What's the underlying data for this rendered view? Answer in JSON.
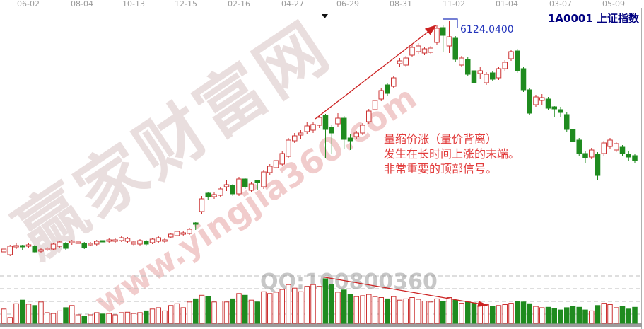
{
  "header": {
    "title": "1A0001 上证指数",
    "dates": [
      "06-02",
      "08-04",
      "10-13",
      "12-15",
      "02-16",
      "04-27",
      "06-29",
      "08-31",
      "11-02",
      "01-04",
      "03-07",
      "05-09"
    ]
  },
  "annotations": {
    "peak_label": "6124.0400",
    "note_lines": [
      "量缩价涨（量价背离）",
      "发生在长时间上涨的末端。",
      "非常重要的顶部信号。"
    ]
  },
  "watermarks": {
    "site_name": "赢家财富网",
    "url": "www.yingjia360.com",
    "qq": "QQ:100800360"
  },
  "colors": {
    "up": "#cc3333",
    "down": "#1f8b1f",
    "note_red": "#e23b3b",
    "peak_blue": "#2233bb",
    "title_navy": "#000080",
    "axis_text": "#9a9a9a",
    "grid": "#bdbdbd",
    "baseline": "#9c9c9c",
    "arrow": "#cc2020"
  },
  "chart_data": {
    "type": "candlestick",
    "symbol": "1A0001",
    "symbol_name": "上证指数",
    "interval": "weekly",
    "peak_price": 6124.04,
    "x_axis_dates": [
      "06-02",
      "08-04",
      "10-13",
      "12-15",
      "02-16",
      "04-27",
      "06-29",
      "08-31",
      "11-02",
      "01-04",
      "03-07",
      "05-09"
    ],
    "price_axis_estimated_range": [
      1400,
      6370
    ],
    "grid": "dashed horizontal lines in volume pane only",
    "legend_position": "none",
    "candles_ohlc_note": "open,high,low,close (estimated index points; red hollow = up week, green solid = down week)",
    "candles": [
      [
        1723,
        1818,
        1683,
        1777
      ],
      [
        1669,
        1858,
        1642,
        1831
      ],
      [
        1818,
        1885,
        1777,
        1845
      ],
      [
        1845,
        1858,
        1750,
        1818
      ],
      [
        1831,
        1899,
        1791,
        1858
      ],
      [
        1831,
        1858,
        1696,
        1723
      ],
      [
        1737,
        1791,
        1710,
        1764
      ],
      [
        1764,
        1818,
        1737,
        1791
      ],
      [
        1777,
        1899,
        1750,
        1872
      ],
      [
        1831,
        1939,
        1791,
        1912
      ],
      [
        1885,
        1912,
        1764,
        1791
      ],
      [
        1899,
        1953,
        1858,
        1926
      ],
      [
        1885,
        1939,
        1845,
        1912
      ],
      [
        1885,
        1912,
        1777,
        1804
      ],
      [
        1858,
        1912,
        1831,
        1885
      ],
      [
        1872,
        1953,
        1845,
        1926
      ],
      [
        1939,
        1953,
        1831,
        1912
      ],
      [
        1926,
        1980,
        1885,
        1953
      ],
      [
        1926,
        1980,
        1899,
        1953
      ],
      [
        1939,
        2020,
        1912,
        1993
      ],
      [
        1926,
        2007,
        1899,
        1980
      ],
      [
        1872,
        1939,
        1845,
        1912
      ],
      [
        1872,
        1966,
        1845,
        1939
      ],
      [
        1926,
        1953,
        1845,
        1872
      ],
      [
        1899,
        1993,
        1872,
        1966
      ],
      [
        1926,
        2020,
        1899,
        1993
      ],
      [
        1926,
        1980,
        1899,
        1953
      ],
      [
        2007,
        2088,
        1980,
        2061
      ],
      [
        2034,
        2142,
        2007,
        2115
      ],
      [
        2061,
        2115,
        2034,
        2088
      ],
      [
        2074,
        2182,
        2047,
        2155
      ],
      [
        2277,
        2290,
        2142,
        2250
      ],
      [
        2493,
        2790,
        2439,
        2736
      ],
      [
        2844,
        2871,
        2709,
        2776
      ],
      [
        2776,
        2857,
        2736,
        2817
      ],
      [
        2803,
        2952,
        2763,
        2925
      ],
      [
        2965,
        3087,
        2884,
        3006
      ],
      [
        2992,
        3019,
        2790,
        2830
      ],
      [
        2830,
        3154,
        2790,
        3114
      ],
      [
        3114,
        3141,
        2925,
        2965
      ],
      [
        2898,
        3060,
        2857,
        3019
      ],
      [
        3087,
        3100,
        2911,
        3046
      ],
      [
        2965,
        3289,
        2925,
        3249
      ],
      [
        3235,
        3397,
        3195,
        3357
      ],
      [
        3330,
        3505,
        3289,
        3465
      ],
      [
        3397,
        3640,
        3357,
        3600
      ],
      [
        3546,
        3897,
        3505,
        3856
      ],
      [
        3843,
        3991,
        3802,
        3937
      ],
      [
        3951,
        4045,
        3883,
        3991
      ],
      [
        4018,
        4207,
        3964,
        4126
      ],
      [
        4045,
        4194,
        3991,
        4153
      ],
      [
        4140,
        4342,
        4086,
        4288
      ],
      [
        4329,
        4356,
        3519,
        4059
      ],
      [
        4099,
        4140,
        3586,
        3991
      ],
      [
        4167,
        4369,
        4099,
        4275
      ],
      [
        4275,
        4315,
        3694,
        3870
      ],
      [
        3897,
        3964,
        3667,
        3843
      ],
      [
        3924,
        4032,
        3883,
        3991
      ],
      [
        3991,
        4180,
        3951,
        4140
      ],
      [
        4207,
        4450,
        4167,
        4410
      ],
      [
        4437,
        4653,
        4396,
        4612
      ],
      [
        4639,
        4842,
        4599,
        4801
      ],
      [
        4909,
        4936,
        4707,
        4747
      ],
      [
        4882,
        5085,
        4842,
        5044
      ],
      [
        5314,
        5422,
        5247,
        5368
      ],
      [
        5287,
        5463,
        5247,
        5422
      ],
      [
        5476,
        5692,
        5436,
        5625
      ],
      [
        5544,
        5706,
        5503,
        5652
      ],
      [
        5517,
        5638,
        5476,
        5598
      ],
      [
        5530,
        5652,
        5490,
        5611
      ],
      [
        5719,
        6057,
        5679,
        5989
      ],
      [
        6003,
        6043,
        5544,
        5854
      ],
      [
        5652,
        6124,
        5517,
        5827
      ],
      [
        5800,
        5841,
        5355,
        5395
      ],
      [
        5287,
        5463,
        5247,
        5422
      ],
      [
        5395,
        5436,
        5071,
        5112
      ],
      [
        5179,
        5220,
        4909,
        4950
      ],
      [
        5125,
        5247,
        5017,
        5179
      ],
      [
        4950,
        5152,
        4909,
        5112
      ],
      [
        5139,
        5179,
        4977,
        5017
      ],
      [
        5044,
        5260,
        5004,
        5220
      ],
      [
        5220,
        5382,
        5179,
        5341
      ],
      [
        5409,
        5584,
        5368,
        5544
      ],
      [
        5557,
        5598,
        5139,
        5179
      ],
      [
        5220,
        5260,
        4774,
        4815
      ],
      [
        4815,
        4855,
        4329,
        4369
      ],
      [
        4531,
        4720,
        4491,
        4680
      ],
      [
        4612,
        4734,
        4531,
        4666
      ],
      [
        4639,
        4680,
        4423,
        4464
      ],
      [
        4491,
        4504,
        4302,
        4450
      ],
      [
        4437,
        4491,
        4288,
        4383
      ],
      [
        4342,
        4383,
        4018,
        4059
      ],
      [
        4059,
        4099,
        3789,
        3829
      ],
      [
        3856,
        3897,
        3559,
        3600
      ],
      [
        3600,
        3640,
        3424,
        3519
      ],
      [
        3532,
        3708,
        3492,
        3667
      ],
      [
        3586,
        3627,
        3087,
        3181
      ],
      [
        3600,
        3843,
        3559,
        3802
      ],
      [
        3735,
        3897,
        3694,
        3856
      ],
      [
        3667,
        3829,
        3627,
        3789
      ],
      [
        3721,
        3762,
        3559,
        3600
      ],
      [
        3586,
        3640,
        3451,
        3532
      ],
      [
        3559,
        3600,
        3424,
        3465
      ]
    ],
    "volumes_pct": [
      32,
      13,
      44,
      52,
      43,
      40,
      48,
      24,
      22,
      28,
      35,
      40,
      19,
      16,
      19,
      24,
      21,
      22,
      19,
      24,
      25,
      22,
      24,
      28,
      32,
      35,
      28,
      40,
      44,
      35,
      48,
      55,
      63,
      60,
      48,
      50,
      48,
      55,
      67,
      63,
      52,
      48,
      71,
      67,
      70,
      76,
      87,
      79,
      71,
      83,
      87,
      83,
      100,
      88,
      70,
      75,
      65,
      60,
      62,
      65,
      60,
      58,
      55,
      60,
      52,
      55,
      58,
      54,
      50,
      48,
      55,
      50,
      58,
      52,
      45,
      48,
      46,
      40,
      42,
      38,
      40,
      42,
      45,
      50,
      48,
      44,
      38,
      35,
      36,
      33,
      30,
      35,
      38,
      36,
      30,
      28,
      40,
      45,
      42,
      35,
      38,
      32,
      36
    ]
  }
}
